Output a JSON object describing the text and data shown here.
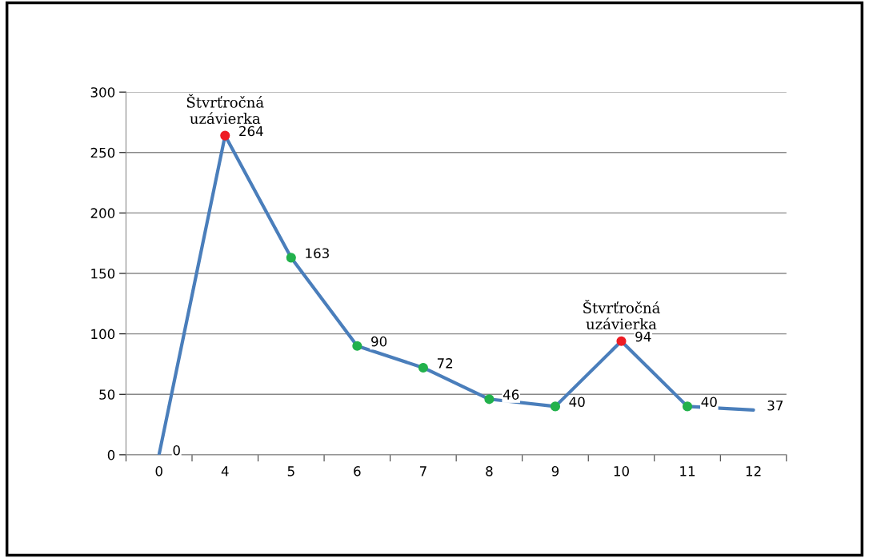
{
  "chart_data": {
    "type": "line",
    "categories": [
      "0",
      "4",
      "5",
      "6",
      "7",
      "8",
      "9",
      "10",
      "11",
      "12"
    ],
    "series": [
      {
        "color": "#4a7ebb",
        "marker": "none",
        "values": [
          0,
          264,
          163,
          90,
          72,
          46,
          40,
          94,
          40,
          37
        ],
        "value_labels": [
          "0",
          "264",
          "163",
          "90",
          "72",
          "46",
          "40",
          "94",
          "40",
          "37"
        ]
      },
      {
        "type": "scatter",
        "color": "#ee1c24",
        "marker": "circle",
        "values": [
          null,
          264,
          null,
          null,
          null,
          null,
          null,
          94,
          null,
          null
        ]
      },
      {
        "type": "scatter",
        "color": "#22b14c",
        "marker": "circle",
        "values": [
          null,
          null,
          163,
          90,
          72,
          46,
          40,
          null,
          40,
          null
        ]
      }
    ],
    "ylim": [
      0,
      300
    ],
    "yticks": [
      0,
      50,
      100,
      150,
      200,
      250,
      300
    ],
    "grid": "y",
    "legend": false,
    "annotations": [
      {
        "text": "Štvrťročná\nuzávierka",
        "x": "4",
        "y": 264
      },
      {
        "text": "Štvrťročná\nuzávierka",
        "x": "10",
        "y": 94
      }
    ]
  }
}
